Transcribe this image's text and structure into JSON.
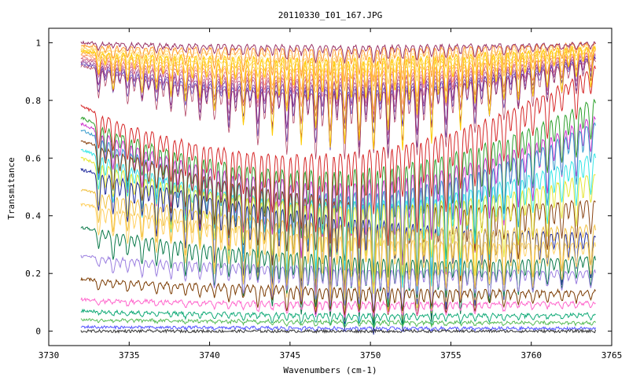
{
  "chart_data": {
    "type": "line",
    "title": "20110330_I01_167.JPG",
    "xlabel": "Wavenumbers (cm-1)",
    "ylabel": "Transmitance",
    "xlim": [
      3730,
      3765
    ],
    "ylim": [
      -0.05,
      1.05
    ],
    "x_range": [
      3732,
      3764
    ],
    "x_ticks": [
      3730,
      3735,
      3740,
      3745,
      3750,
      3755,
      3760,
      3765
    ],
    "y_ticks": [
      0,
      0.2,
      0.4,
      0.6,
      0.8,
      1
    ],
    "y_tick_labels": [
      "0",
      "0.2",
      "0.4",
      "0.6",
      "0.8",
      "1"
    ],
    "grid": false,
    "legend": "none",
    "absorption_line_centers": [
      3733.1,
      3734.0,
      3734.9,
      3735.8,
      3736.7,
      3737.6,
      3738.5,
      3739.4,
      3740.3,
      3741.2,
      3742.1,
      3743.0,
      3743.9,
      3744.8,
      3745.7,
      3746.6,
      3747.5,
      3748.4,
      3749.3,
      3750.2,
      3751.1,
      3752.0,
      3752.9,
      3753.8,
      3754.7,
      3755.6,
      3756.5,
      3757.4,
      3758.3,
      3759.2,
      3760.1,
      3761.0,
      3761.9,
      3762.8,
      3763.7
    ],
    "series_summary": [
      {
        "color": "#d62728",
        "y_start": 0.78,
        "y_mid": 0.62,
        "y_end": 0.92,
        "mid_depth": 0.35
      },
      {
        "color": "#2ca02c",
        "y_start": 0.74,
        "y_mid": 0.56,
        "y_end": 0.81,
        "mid_depth": 0.45
      },
      {
        "color": "#cc33cc",
        "y_start": 0.72,
        "y_mid": 0.52,
        "y_end": 0.75,
        "mid_depth": 0.45
      },
      {
        "color": "#3399cc",
        "y_start": 0.7,
        "y_mid": 0.48,
        "y_end": 0.73,
        "mid_depth": 0.45
      },
      {
        "color": "#8b4513",
        "y_start": 0.66,
        "y_mid": 0.46,
        "y_end": 0.46,
        "mid_depth": 0.35
      },
      {
        "color": "#33e6e6",
        "y_start": 0.63,
        "y_mid": 0.45,
        "y_end": 0.62,
        "mid_depth": 0.4
      },
      {
        "color": "#e6e633",
        "y_start": 0.6,
        "y_mid": 0.44,
        "y_end": 0.55,
        "mid_depth": 0.4
      },
      {
        "color": "#1f2a9c",
        "y_start": 0.56,
        "y_mid": 0.4,
        "y_end": 0.34,
        "mid_depth": 0.4
      },
      {
        "color": "#f0c040",
        "y_start": 0.49,
        "y_mid": 0.37,
        "y_end": 0.37,
        "mid_depth": 0.35
      },
      {
        "color": "#ffd060",
        "y_start": 0.44,
        "y_mid": 0.33,
        "y_end": 0.31,
        "mid_depth": 0.3
      },
      {
        "color": "#0b7a4a",
        "y_start": 0.36,
        "y_mid": 0.26,
        "y_end": 0.26,
        "mid_depth": 0.25
      },
      {
        "color": "#9b7fe0",
        "y_start": 0.26,
        "y_mid": 0.22,
        "y_end": 0.21,
        "mid_depth": 0.15
      },
      {
        "color": "#7a3a00",
        "y_start": 0.18,
        "y_mid": 0.15,
        "y_end": 0.14,
        "mid_depth": 0.1
      },
      {
        "color": "#ff66cc",
        "y_start": 0.11,
        "y_mid": 0.1,
        "y_end": 0.1,
        "mid_depth": 0.05
      },
      {
        "color": "#11aa77",
        "y_start": 0.07,
        "y_mid": 0.06,
        "y_end": 0.06,
        "mid_depth": 0.04
      },
      {
        "color": "#55bb55",
        "y_start": 0.04,
        "y_mid": 0.035,
        "y_end": 0.03,
        "mid_depth": 0.02
      },
      {
        "color": "#5555ff",
        "y_start": 0.015,
        "y_mid": 0.012,
        "y_end": 0.01,
        "mid_depth": 0.01
      },
      {
        "color": "#333333",
        "y_start": 0.0,
        "y_mid": 0.0,
        "y_end": 0.0,
        "mid_depth": 0.0
      },
      {
        "color": "#ffcc00",
        "y_start": 0.97,
        "y_mid": 0.95,
        "y_end": 0.99,
        "mid_depth": 0.35
      },
      {
        "color": "#ff9933",
        "y_start": 0.99,
        "y_mid": 0.98,
        "y_end": 1.0,
        "mid_depth": 0.12
      },
      {
        "color": "#993366",
        "y_start": 1.0,
        "y_mid": 0.99,
        "y_end": 1.0,
        "mid_depth": 0.06
      }
    ]
  }
}
